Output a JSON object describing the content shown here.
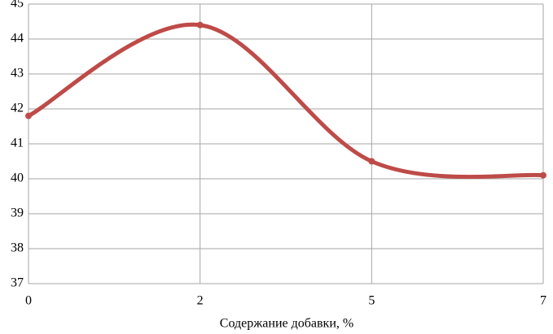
{
  "chart_data": {
    "type": "line",
    "x_label": "Содержание добавки, %",
    "categories": [
      "0",
      "2",
      "5",
      "7"
    ],
    "values": [
      41.8,
      44.4,
      40.5,
      40.1
    ],
    "color": "#be4b48",
    "smooth": true,
    "markers": true,
    "ylim": [
      37,
      45
    ],
    "yticks": [
      37,
      38,
      39,
      40,
      41,
      42,
      43,
      44,
      45
    ],
    "grid": true
  }
}
